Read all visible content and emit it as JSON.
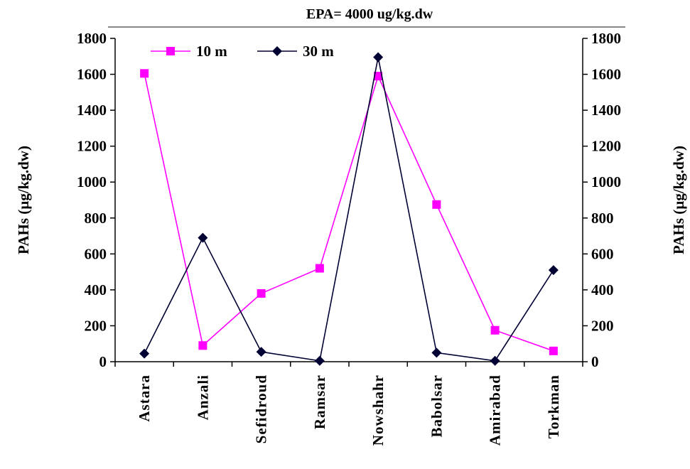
{
  "chart_data": {
    "type": "line",
    "title": "",
    "annotation": {
      "text": "EPA= 4000 ug/kg.dw"
    },
    "xlabel": "",
    "ylabel": "PAHs  (µg/kg.dw)",
    "ylabel_right": "PAHs  (µg/kg.dw)",
    "categories": [
      "Astara",
      "Anzali",
      "Sefidroud",
      "Ramsar",
      "Nowshahr",
      "Babolsar",
      "Amirabad",
      "Torkman"
    ],
    "ylim": [
      0,
      1800
    ],
    "yticks": [
      0,
      200,
      400,
      600,
      800,
      1000,
      1200,
      1400,
      1600,
      1800
    ],
    "grid": false,
    "legend": {
      "placement": "top-left",
      "orientation": "horizontal"
    },
    "series": [
      {
        "name": "10 m",
        "color": "#ff00ff",
        "marker": "square",
        "values": [
          1605,
          90,
          380,
          520,
          1590,
          875,
          175,
          60
        ]
      },
      {
        "name": "30 m",
        "color": "#000033",
        "marker": "diamond",
        "values": [
          45,
          690,
          55,
          5,
          1695,
          50,
          5,
          510
        ]
      }
    ]
  }
}
